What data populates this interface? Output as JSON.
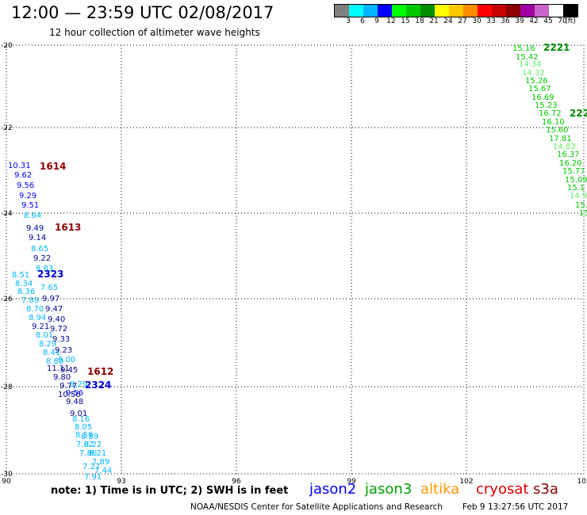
{
  "header": {
    "title": "12:00 — 23:59 UTC 02/08/2017",
    "subtitle": "12 hour collection of altimeter wave heights"
  },
  "legend": {
    "colors": [
      "#808080",
      "#00ffff",
      "#00b4ff",
      "#0000ff",
      "#00ff00",
      "#00c800",
      "#008c00",
      "#ffff00",
      "#ffc800",
      "#ff8c00",
      "#ff0000",
      "#c80000",
      "#8c0000",
      "#a000a0",
      "#c864c8",
      "#ffffff",
      "#000000"
    ],
    "labels": [
      "3",
      "6",
      "9",
      "12",
      "15",
      "18",
      "21",
      "24",
      "27",
      "30",
      "33",
      "36",
      "39",
      "42",
      "45",
      "70",
      "(ft)"
    ]
  },
  "map": {
    "lat_labels": [
      "-20",
      "-22",
      "-24",
      "-26",
      "-28",
      "-30"
    ],
    "lon_labels": [
      "90",
      "93",
      "96",
      "99",
      "102",
      "105"
    ],
    "tracks": [
      {
        "track_id": "1614",
        "id_color": "#8b0000",
        "labels": [
          {
            "text": "10.31",
            "color": "#0000ff"
          },
          {
            "text": "9.62",
            "color": "#0000ff"
          },
          {
            "text": "9.56",
            "color": "#0000ff"
          },
          {
            "text": "9.29",
            "color": "#0000ff"
          },
          {
            "text": "9.51",
            "color": "#0000ff"
          },
          {
            "text": "8.64",
            "color": "#00b4ff"
          }
        ]
      },
      {
        "track_id": "1613",
        "id_color": "#8b0000",
        "labels": [
          {
            "text": "9.49",
            "color": "#00008b"
          },
          {
            "text": "9.14",
            "color": "#00008b"
          },
          {
            "text": "8.65",
            "color": "#00b4ff"
          },
          {
            "text": "9.22",
            "color": "#00008b"
          },
          {
            "text": "8.83",
            "color": "#00b4ff"
          }
        ]
      },
      {
        "track_id": "2323",
        "id_color": "#0000cd",
        "labels": [
          {
            "text": "8.51",
            "color": "#00b4ff"
          },
          {
            "text": "8.34",
            "color": "#00b4ff"
          },
          {
            "text": "8.36",
            "color": "#00b4ff"
          },
          {
            "text": "7.89",
            "color": "#00b4ff"
          },
          {
            "text": "8.70",
            "color": "#00b4ff"
          },
          {
            "text": "8.94",
            "color": "#00b4ff"
          },
          {
            "text": "9.21",
            "color": "#00008b"
          },
          {
            "text": "8.01",
            "color": "#00b4ff"
          },
          {
            "text": "8.29",
            "color": "#00b4ff"
          },
          {
            "text": "8.41",
            "color": "#00b4ff"
          },
          {
            "text": "8.80",
            "color": "#00b4ff"
          },
          {
            "text": "11.11",
            "color": "#00008b"
          },
          {
            "text": "9.80",
            "color": "#00008b"
          },
          {
            "text": "9.77",
            "color": "#00008b"
          },
          {
            "text": "10.56",
            "color": "#00008b"
          }
        ]
      },
      {
        "track_id": "1612",
        "id_color": "#8b0000",
        "labels": [
          {
            "text": "7.65",
            "color": "#00b4ff"
          },
          {
            "text": "9.97",
            "color": "#00008b"
          },
          {
            "text": "9.47",
            "color": "#00008b"
          },
          {
            "text": "9.40",
            "color": "#00008b"
          },
          {
            "text": "9.72",
            "color": "#00008b"
          },
          {
            "text": "9.33",
            "color": "#00008b"
          },
          {
            "text": "9.23",
            "color": "#00008b"
          },
          {
            "text": "9.00",
            "color": "#00b4ff"
          },
          {
            "text": "9.45",
            "color": "#00008b"
          },
          {
            "text": "9.29",
            "color": "#00b4ff"
          },
          {
            "text": "9.56",
            "color": "#0000ff"
          },
          {
            "text": "9.48",
            "color": "#00008b"
          }
        ]
      },
      {
        "track_id": "2324",
        "id_color": "#0000cd",
        "labels": [
          {
            "text": "9.01",
            "color": "#00008b"
          },
          {
            "text": "8.16",
            "color": "#00b4ff"
          },
          {
            "text": "8.05",
            "color": "#00b4ff"
          },
          {
            "text": "8.59",
            "color": "#00b4ff"
          },
          {
            "text": "8.89",
            "color": "#00b4ff"
          },
          {
            "text": "7.82",
            "color": "#00b4ff"
          },
          {
            "text": "8.22",
            "color": "#00b4ff"
          },
          {
            "text": "7.86",
            "color": "#00b4ff"
          },
          {
            "text": "8.21",
            "color": "#00b4ff"
          },
          {
            "text": "7.89",
            "color": "#00b4ff"
          },
          {
            "text": "7.27",
            "color": "#00b4ff"
          },
          {
            "text": "7.44",
            "color": "#00b4ff"
          },
          {
            "text": "7.91",
            "color": "#00b4ff"
          }
        ]
      },
      {
        "track_id": "2221",
        "id_color": "#008c00",
        "labels": [
          {
            "text": "15.16",
            "color": "#00c800"
          },
          {
            "text": "15.42",
            "color": "#00c800"
          },
          {
            "text": "14.34",
            "color": "#66ee66"
          },
          {
            "text": "14.32",
            "color": "#66ee66"
          },
          {
            "text": "15.26",
            "color": "#00c800"
          },
          {
            "text": "15.67",
            "color": "#00c800"
          },
          {
            "text": "16.69",
            "color": "#00c800"
          },
          {
            "text": "15.23",
            "color": "#00c800"
          },
          {
            "text": "16.72",
            "color": "#00c800"
          },
          {
            "text": "16.10",
            "color": "#00c800"
          },
          {
            "text": "15.60",
            "color": "#00c800"
          },
          {
            "text": "17.81",
            "color": "#00c800"
          },
          {
            "text": "14.83",
            "color": "#66ee66"
          },
          {
            "text": "16.37",
            "color": "#00c800"
          },
          {
            "text": "16.20",
            "color": "#00c800"
          },
          {
            "text": "15.77",
            "color": "#00c800"
          },
          {
            "text": "15.09",
            "color": "#00c800"
          },
          {
            "text": "15.1",
            "color": "#00c800"
          },
          {
            "text": "14.9",
            "color": "#66ee66"
          },
          {
            "text": "15.",
            "color": "#00c800"
          },
          {
            "text": "15",
            "color": "#00c800"
          }
        ]
      },
      {
        "track_id": "222",
        "id_color": "#008c00",
        "labels": []
      }
    ]
  },
  "footer": {
    "note": "note: 1) Time is in UTC; 2) SWH is in feet",
    "satellites": [
      {
        "name": "jason2",
        "color": "#0000ff"
      },
      {
        "name": "jason3",
        "color": "#00a000"
      },
      {
        "name": "altika",
        "color": "#ff9900"
      },
      {
        "name": "cryosat",
        "color": "#e00000"
      },
      {
        "name": "s3a",
        "color": "#8b0000"
      }
    ],
    "credit": "NOAA/NESDIS Center for Satellite Applications and Research",
    "timestamp": "Feb  9 13:27:56 UTC 2017"
  }
}
